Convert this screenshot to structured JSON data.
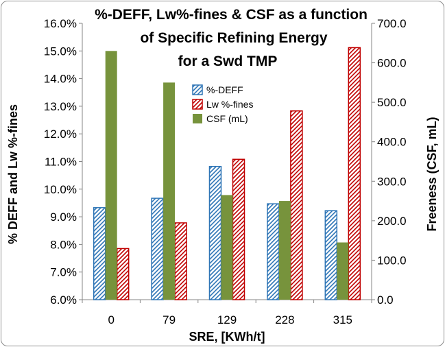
{
  "chart_data": {
    "type": "bar",
    "title_lines": [
      "%-DEFF, Lw%-fines & CSF as a function",
      "of Specific Refining Energy",
      "for a Swd TMP"
    ],
    "xlabel": "SRE, [KWh/t]",
    "ylabel_left": "% DEFF and Lw %-fines",
    "ylabel_right": "Freeness (CSF, mL)",
    "categories": [
      "0",
      "79",
      "129",
      "228",
      "315"
    ],
    "ylim_left": [
      6.0,
      16.0
    ],
    "ylim_right": [
      0.0,
      700.0
    ],
    "yticks_left": [
      "6.0%",
      "7.0%",
      "8.0%",
      "9.0%",
      "10.0%",
      "11.0%",
      "12.0%",
      "13.0%",
      "14.0%",
      "15.0%",
      "16.0%"
    ],
    "yticks_right": [
      "0.0",
      "100.0",
      "200.0",
      "300.0",
      "400.0",
      "500.0",
      "600.0",
      "700.0"
    ],
    "grid": false,
    "legend_position": "upper-center",
    "series": [
      {
        "name": "%-DEFF",
        "axis": "left",
        "color": "#2e75b6",
        "pattern": "hatch-blue",
        "values": [
          9.33,
          9.67,
          10.82,
          9.47,
          9.22
        ]
      },
      {
        "name": "Lw %-fines",
        "axis": "left",
        "color": "#c00000",
        "pattern": "hatch-red",
        "values": [
          7.85,
          8.78,
          11.08,
          12.83,
          15.12
        ]
      },
      {
        "name": "CSF (mL)",
        "axis": "right",
        "color": "#77933c",
        "pattern": "solid",
        "values": [
          630,
          550,
          265,
          250,
          145
        ]
      }
    ]
  }
}
